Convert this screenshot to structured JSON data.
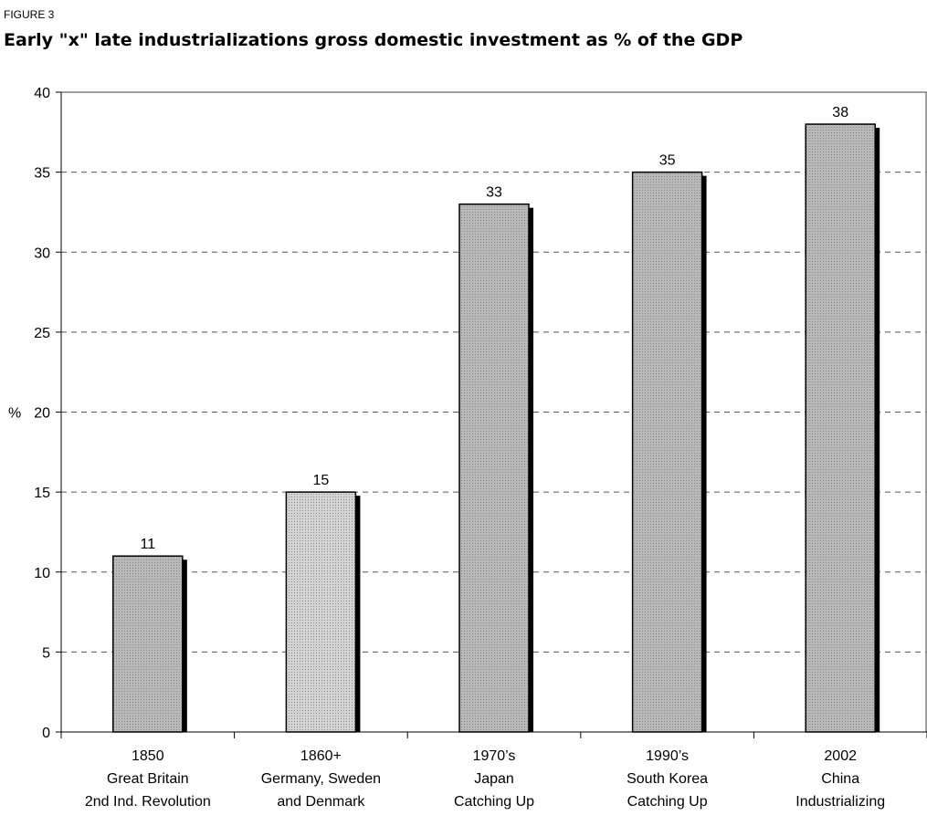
{
  "figure_label": "FIGURE 3",
  "chart_data": {
    "type": "bar",
    "title": "Early \"x\" late industrializations gross domestic investment as % of the GDP",
    "ylabel": "%",
    "xlabel": "",
    "ylim": [
      0,
      40
    ],
    "yticks": [
      0,
      5,
      10,
      15,
      20,
      25,
      30,
      35,
      40
    ],
    "grid": true,
    "categories": [
      [
        "1850",
        "Great Britain",
        "2nd Ind. Revolution"
      ],
      [
        "1860+",
        "Germany, Sweden",
        "and Denmark"
      ],
      [
        "1970’s",
        "Japan",
        "Catching Up"
      ],
      [
        "1990’s",
        "South Korea",
        "Catching Up"
      ],
      [
        "2002",
        "China",
        "Industrializing"
      ]
    ],
    "values": [
      11,
      15,
      33,
      35,
      38
    ],
    "data_labels": [
      "11",
      "15",
      "33",
      "35",
      "38"
    ],
    "colors": {
      "bar_fill": "#b8b8b8",
      "bar_fill_light": "#d4d4d4",
      "shadow": "#000000",
      "grid": "#555555",
      "axis": "#808080"
    }
  }
}
